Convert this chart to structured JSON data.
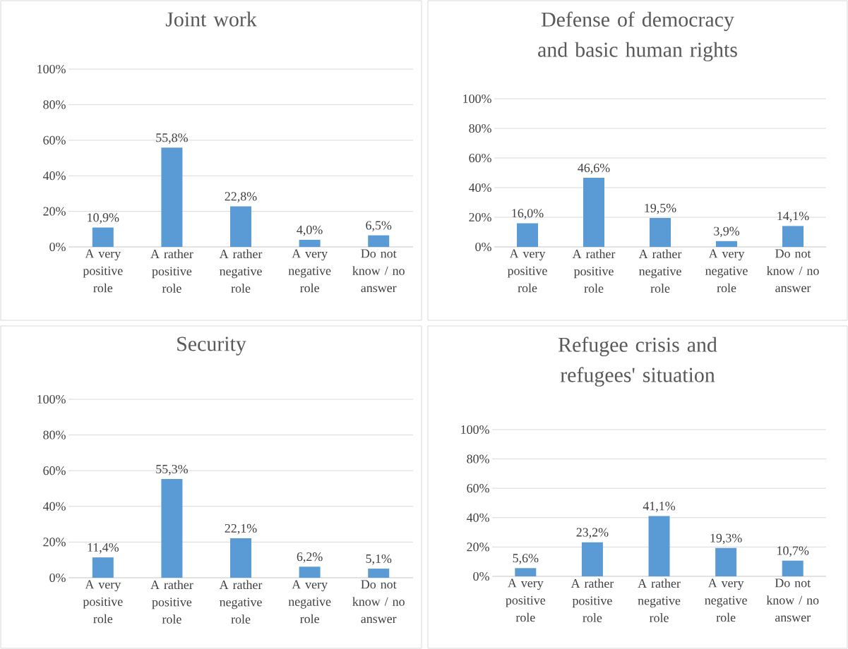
{
  "chart_data": [
    {
      "type": "bar",
      "title": "Joint work",
      "categories": [
        "A very positive role",
        "A rather positive role",
        "A rather negative role",
        "A very negative role",
        "Do not know / no answer"
      ],
      "values": [
        10.9,
        55.8,
        22.8,
        4.0,
        6.5
      ],
      "value_labels": [
        "10,9%",
        "55,8%",
        "22,8%",
        "4,0%",
        "6,5%"
      ],
      "color": "#5b9bd5",
      "ylim": [
        0,
        100
      ],
      "yticks": [
        {
          "value": 0,
          "label": "0%"
        },
        {
          "value": 20,
          "label": "20%"
        },
        {
          "value": 40,
          "label": "40%"
        },
        {
          "value": 60,
          "label": "60%"
        },
        {
          "value": 80,
          "label": "80%"
        },
        {
          "value": 100,
          "label": "100%"
        }
      ],
      "grid": "y"
    },
    {
      "type": "bar",
      "title": "Defense of democracy and basic human rights",
      "categories": [
        "A very positive role",
        "A rather positive role",
        "A rather negative role",
        "A very negative role",
        "Do not know / no answer"
      ],
      "values": [
        16.0,
        46.6,
        19.5,
        3.9,
        14.1
      ],
      "value_labels": [
        "16,0%",
        "46,6%",
        "19,5%",
        "3,9%",
        "14,1%"
      ],
      "color": "#5b9bd5",
      "ylim": [
        0,
        100
      ],
      "yticks": [
        {
          "value": 0,
          "label": "0%"
        },
        {
          "value": 20,
          "label": "20%"
        },
        {
          "value": 40,
          "label": "40%"
        },
        {
          "value": 60,
          "label": "60%"
        },
        {
          "value": 80,
          "label": "80%"
        },
        {
          "value": 100,
          "label": "100%"
        }
      ],
      "grid": "y"
    },
    {
      "type": "bar",
      "title": "Security",
      "categories": [
        "A very positive role",
        "A rather positive role",
        "A rather negative role",
        "A very negative role",
        "Do not know / no answer"
      ],
      "values": [
        11.4,
        55.3,
        22.1,
        6.2,
        5.1
      ],
      "value_labels": [
        "11,4%",
        "55,3%",
        "22,1%",
        "6,2%",
        "5,1%"
      ],
      "color": "#5b9bd5",
      "ylim": [
        0,
        100
      ],
      "yticks": [
        {
          "value": 0,
          "label": "0%"
        },
        {
          "value": 20,
          "label": "20%"
        },
        {
          "value": 40,
          "label": "40%"
        },
        {
          "value": 60,
          "label": "60%"
        },
        {
          "value": 80,
          "label": "80%"
        },
        {
          "value": 100,
          "label": "100%"
        }
      ],
      "grid": "y"
    },
    {
      "type": "bar",
      "title": "Refugee crisis and refugees' situation",
      "categories": [
        "A very positive role",
        "A rather positive role",
        "A rather negative role",
        "A very negative role",
        "Do not know / no answer"
      ],
      "values": [
        5.6,
        23.2,
        41.1,
        19.3,
        10.7
      ],
      "value_labels": [
        "5,6%",
        "23,2%",
        "41,1%",
        "19,3%",
        "10,7%"
      ],
      "color": "#5b9bd5",
      "ylim": [
        0,
        100
      ],
      "yticks": [
        {
          "value": 0,
          "label": "0%"
        },
        {
          "value": 20,
          "label": "20%"
        },
        {
          "value": 40,
          "label": "40%"
        },
        {
          "value": 60,
          "label": "60%"
        },
        {
          "value": 80,
          "label": "80%"
        },
        {
          "value": 100,
          "label": "100%"
        }
      ],
      "grid": "y"
    }
  ]
}
